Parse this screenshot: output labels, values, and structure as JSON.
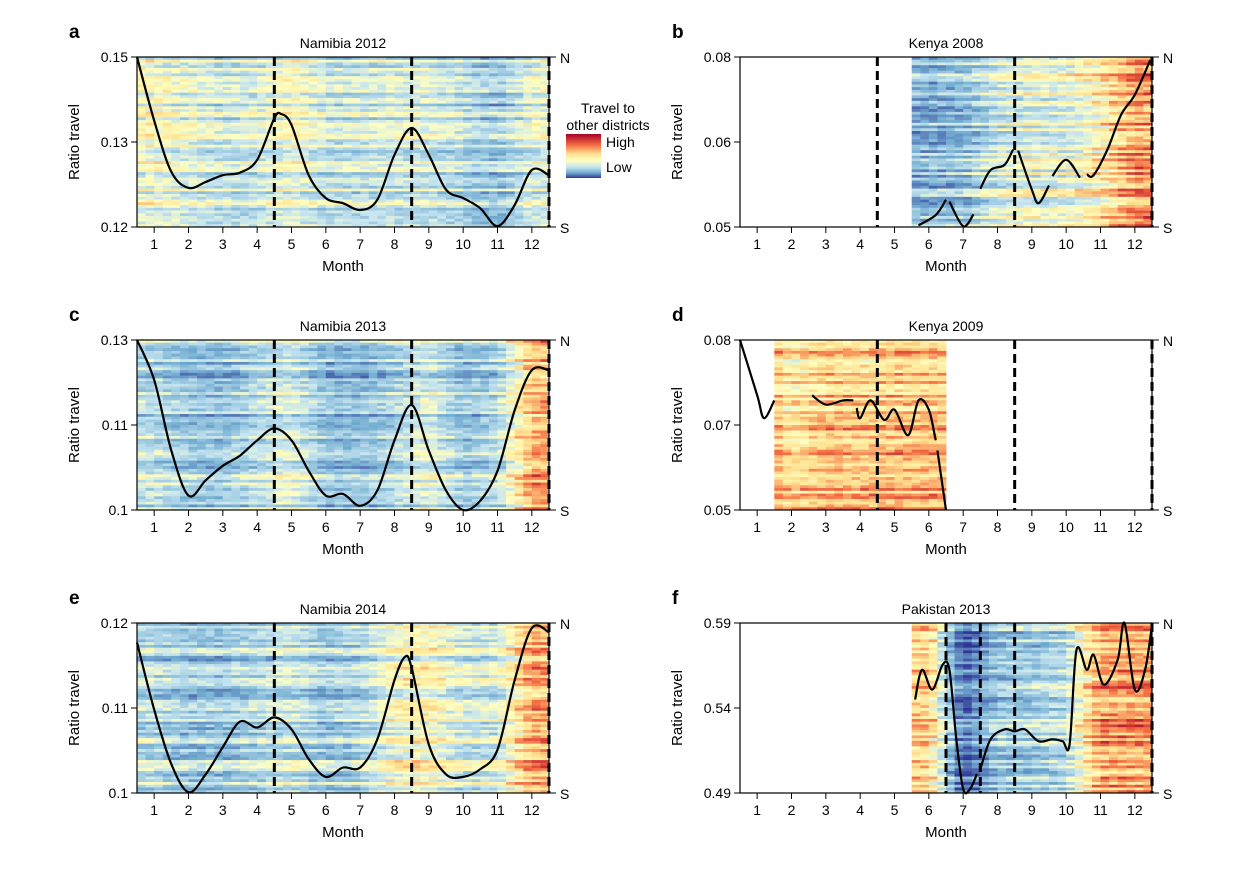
{
  "legend": {
    "title_lines": [
      "Travel to",
      "other districts"
    ],
    "high": "High",
    "low": "Low",
    "colormap": [
      "#313695",
      "#74add1",
      "#c6e5f0",
      "#ffffbf",
      "#fee090",
      "#f46d43",
      "#a50026"
    ]
  },
  "chart_data": [
    {
      "panel": "a",
      "type": "heatmap",
      "title": "Namibia 2012",
      "xlabel": "Month",
      "ylabel": "Ratio travel",
      "x_ticks": [
        "1",
        "2",
        "3",
        "4",
        "5",
        "6",
        "7",
        "8",
        "9",
        "10",
        "11",
        "12"
      ],
      "y_ticks": [
        "0.12",
        "0.13",
        "0.15"
      ],
      "y_right_labels": [
        "S",
        "N"
      ],
      "dashed_lines_month": [
        4.5,
        8.5,
        12.5
      ],
      "heatmap_months": [
        0.5,
        12.5
      ],
      "heatmap_intensity_by_month": [
        0.5,
        0.45,
        0.4,
        0.42,
        0.5,
        0.4,
        0.4,
        0.42,
        0.42,
        0.36,
        0.3,
        0.45
      ],
      "line_segments": [
        [
          [
            0.5,
            0.15
          ],
          [
            1,
            0.135
          ],
          [
            1.5,
            0.1265
          ],
          [
            2,
            0.1246
          ],
          [
            2.5,
            0.1253
          ],
          [
            3,
            0.1261
          ],
          [
            3.5,
            0.1264
          ],
          [
            4,
            0.1279
          ],
          [
            4.5,
            0.1356
          ],
          [
            4.7,
            0.1366
          ],
          [
            5,
            0.134
          ],
          [
            5.5,
            0.1261
          ],
          [
            6,
            0.1234
          ],
          [
            6.5,
            0.1228
          ],
          [
            7,
            0.122
          ],
          [
            7.5,
            0.1232
          ],
          [
            8,
            0.1285
          ],
          [
            8.5,
            0.1333
          ],
          [
            9,
            0.1285
          ],
          [
            9.5,
            0.1244
          ],
          [
            10,
            0.1234
          ],
          [
            10.5,
            0.1222
          ],
          [
            11,
            0.1201
          ],
          [
            11.5,
            0.1226
          ],
          [
            12,
            0.1267
          ],
          [
            12.5,
            0.1261
          ]
        ]
      ]
    },
    {
      "panel": "b",
      "type": "heatmap",
      "title": "Kenya 2008",
      "xlabel": "Month",
      "ylabel": "Ratio travel",
      "x_ticks": [
        "1",
        "2",
        "3",
        "4",
        "5",
        "6",
        "7",
        "8",
        "9",
        "10",
        "11",
        "12"
      ],
      "y_ticks": [
        "0.05",
        "0.06",
        "0.08"
      ],
      "y_right_labels": [
        "S",
        "N"
      ],
      "dashed_lines_month": [
        4.5,
        8.5,
        12.5
      ],
      "heatmap_months": [
        5.5,
        12.5
      ],
      "heatmap_intensity_by_month": [
        null,
        null,
        null,
        null,
        null,
        0.28,
        0.3,
        0.45,
        0.5,
        0.48,
        0.6,
        0.78
      ],
      "line_segments": [
        [
          [
            5.7,
            0.0502
          ],
          [
            6.2,
            0.0514
          ],
          [
            6.5,
            0.0532
          ]
        ],
        [
          [
            6.6,
            0.053
          ],
          [
            7,
            0.0501
          ],
          [
            7.3,
            0.0515
          ]
        ],
        [
          [
            7.5,
            0.0545
          ],
          [
            7.8,
            0.0567
          ],
          [
            8.2,
            0.0573
          ],
          [
            8.45,
            0.0591
          ]
        ],
        [
          [
            8.6,
            0.059
          ],
          [
            9,
            0.0544
          ],
          [
            9.2,
            0.0528
          ],
          [
            9.5,
            0.0549
          ]
        ],
        [
          [
            9.6,
            0.056
          ],
          [
            10,
            0.0579
          ],
          [
            10.4,
            0.0558
          ]
        ],
        [
          [
            10.6,
            0.0562
          ],
          [
            10.8,
            0.0561
          ],
          [
            11.2,
            0.0591
          ],
          [
            11.6,
            0.0664
          ],
          [
            12,
            0.0711
          ],
          [
            12.45,
            0.0793
          ]
        ]
      ]
    },
    {
      "panel": "c",
      "type": "heatmap",
      "title": "Namibia 2013",
      "xlabel": "Month",
      "ylabel": "Ratio travel",
      "x_ticks": [
        "1",
        "2",
        "3",
        "4",
        "5",
        "6",
        "7",
        "8",
        "9",
        "10",
        "11",
        "12"
      ],
      "y_ticks": [
        "0.1",
        "0.11",
        "0.13"
      ],
      "y_right_labels": [
        "S",
        "N"
      ],
      "dashed_lines_month": [
        4.5,
        8.5,
        12.5
      ],
      "heatmap_months": [
        0.5,
        12.5
      ],
      "heatmap_intensity_by_month": [
        0.38,
        0.3,
        0.3,
        0.38,
        0.45,
        0.3,
        0.28,
        0.36,
        0.46,
        0.3,
        0.36,
        0.72
      ],
      "line_segments": [
        [
          [
            0.5,
            0.13
          ],
          [
            1,
            0.1206
          ],
          [
            1.5,
            0.107
          ],
          [
            2,
            0.1017
          ],
          [
            2.5,
            0.1035
          ],
          [
            3,
            0.1052
          ],
          [
            3.5,
            0.1064
          ],
          [
            4,
            0.1082
          ],
          [
            4.5,
            0.1096
          ],
          [
            5,
            0.1082
          ],
          [
            5.5,
            0.1046
          ],
          [
            6,
            0.1017
          ],
          [
            6.5,
            0.1019
          ],
          [
            7,
            0.1005
          ],
          [
            7.5,
            0.1023
          ],
          [
            8,
            0.1082
          ],
          [
            8.5,
            0.1147
          ],
          [
            9,
            0.107
          ],
          [
            9.5,
            0.1023
          ],
          [
            10,
            0.1
          ],
          [
            10.5,
            0.1011
          ],
          [
            11,
            0.1046
          ],
          [
            11.5,
            0.1135
          ],
          [
            12,
            0.1229
          ],
          [
            12.5,
            0.1229
          ]
        ]
      ]
    },
    {
      "panel": "d",
      "type": "heatmap",
      "title": "Kenya 2009",
      "xlabel": "Month",
      "ylabel": "Ratio travel",
      "x_ticks": [
        "1",
        "2",
        "3",
        "4",
        "5",
        "6",
        "7",
        "8",
        "9",
        "10",
        "11",
        "12"
      ],
      "y_ticks": [
        "0.05",
        "0.07",
        "0.08"
      ],
      "y_right_labels": [
        "S",
        "N"
      ],
      "dashed_lines_month": [
        4.5,
        8.5,
        12.5
      ],
      "heatmap_months": [
        1.4,
        6.5
      ],
      "heatmap_intensity_by_month": [
        0.82,
        0.62,
        0.7,
        0.68,
        0.7,
        0.7,
        null,
        null,
        null,
        null,
        null,
        null
      ],
      "line_segments": [
        [
          [
            0.5,
            0.08
          ],
          [
            1,
            0.0735
          ],
          [
            1.2,
            0.0708
          ],
          [
            1.5,
            0.0729
          ]
        ],
        [
          [
            2.6,
            0.0735
          ],
          [
            3,
            0.0724
          ],
          [
            3.5,
            0.0729
          ],
          [
            3.8,
            0.0729
          ]
        ],
        [
          [
            3.9,
            0.072
          ],
          [
            4,
            0.0708
          ],
          [
            4.3,
            0.0729
          ],
          [
            4.7,
            0.0706
          ],
          [
            5,
            0.0718
          ],
          [
            5.4,
            0.0676
          ],
          [
            5.7,
            0.0729
          ],
          [
            6,
            0.0718
          ],
          [
            6.2,
            0.0664
          ]
        ],
        [
          [
            6.25,
            0.064
          ],
          [
            6.5,
            0.05
          ]
        ]
      ]
    },
    {
      "panel": "e",
      "type": "heatmap",
      "title": "Namibia 2014",
      "xlabel": "Month",
      "ylabel": "Ratio travel",
      "x_ticks": [
        "1",
        "2",
        "3",
        "4",
        "5",
        "6",
        "7",
        "8",
        "9",
        "10",
        "11",
        "12"
      ],
      "y_ticks": [
        "0.1",
        "0.11",
        "0.12"
      ],
      "y_right_labels": [
        "S",
        "N"
      ],
      "dashed_lines_month": [
        4.5,
        8.5,
        12.5
      ],
      "heatmap_months": [
        0.5,
        12.5
      ],
      "heatmap_intensity_by_month": [
        0.36,
        0.3,
        0.3,
        0.35,
        0.4,
        0.3,
        0.35,
        0.5,
        0.55,
        0.4,
        0.42,
        0.72
      ],
      "line_segments": [
        [
          [
            0.5,
            0.1177
          ],
          [
            1,
            0.1098
          ],
          [
            1.5,
            0.1034
          ],
          [
            2,
            0.1001
          ],
          [
            2.5,
            0.1022
          ],
          [
            3,
            0.1054
          ],
          [
            3.5,
            0.1084
          ],
          [
            4,
            0.1077
          ],
          [
            4.5,
            0.1089
          ],
          [
            5,
            0.1075
          ],
          [
            5.5,
            0.104
          ],
          [
            6,
            0.1019
          ],
          [
            6.5,
            0.103
          ],
          [
            7,
            0.103
          ],
          [
            7.5,
            0.1063
          ],
          [
            8,
            0.1133
          ],
          [
            8.3,
            0.116
          ],
          [
            8.5,
            0.1147
          ],
          [
            9,
            0.1057
          ],
          [
            9.5,
            0.1022
          ],
          [
            10,
            0.1019
          ],
          [
            10.5,
            0.1028
          ],
          [
            11,
            0.1051
          ],
          [
            11.5,
            0.1133
          ],
          [
            12,
            0.1194
          ],
          [
            12.5,
            0.1189
          ]
        ]
      ]
    },
    {
      "panel": "f",
      "type": "heatmap",
      "title": "Pakistan 2013",
      "xlabel": "Month",
      "ylabel": "Ratio travel",
      "x_ticks": [
        "1",
        "2",
        "3",
        "4",
        "5",
        "6",
        "7",
        "8",
        "9",
        "10",
        "11",
        "12"
      ],
      "y_ticks": [
        "0.49",
        "0.54",
        "0.59"
      ],
      "y_right_labels": [
        "S",
        "N"
      ],
      "dashed_lines_month": [
        6.5,
        7.5,
        8.5,
        12.5
      ],
      "heatmap_months": [
        5.5,
        12.5
      ],
      "heatmap_intensity_by_month": [
        null,
        null,
        null,
        null,
        null,
        0.68,
        0.1,
        0.33,
        0.34,
        0.4,
        0.76,
        0.76
      ],
      "line_segments": [
        [
          [
            5.6,
            0.545
          ],
          [
            5.8,
            0.5625
          ],
          [
            6.1,
            0.5508
          ],
          [
            6.4,
            0.5654
          ],
          [
            6.6,
            0.5625
          ],
          [
            6.8,
            0.5216
          ],
          [
            7,
            0.4923
          ],
          [
            7.2,
            0.4923
          ],
          [
            7.4,
            0.5011
          ]
        ],
        [
          [
            7.5,
            0.504
          ],
          [
            7.8,
            0.5216
          ],
          [
            8.2,
            0.5274
          ],
          [
            8.5,
            0.5263
          ],
          [
            8.8,
            0.5274
          ],
          [
            9.2,
            0.5204
          ],
          [
            9.6,
            0.5216
          ],
          [
            9.9,
            0.5204
          ],
          [
            10.1,
            0.5187
          ],
          [
            10.3,
            0.5742
          ],
          [
            10.6,
            0.5625
          ],
          [
            10.8,
            0.5713
          ],
          [
            11.1,
            0.5537
          ],
          [
            11.5,
            0.5684
          ],
          [
            11.7,
            0.59
          ],
          [
            12,
            0.5508
          ],
          [
            12.3,
            0.5625
          ],
          [
            12.5,
            0.5888
          ]
        ]
      ]
    }
  ]
}
